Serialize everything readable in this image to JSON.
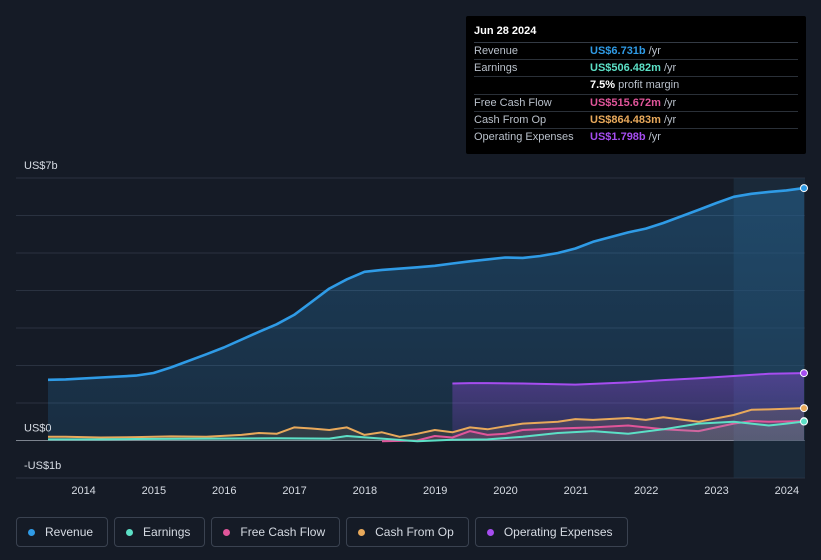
{
  "tooltip": {
    "date": "Jun 28 2024",
    "rows": [
      {
        "label": "Revenue",
        "value": "US$6.731b",
        "unit": "/yr",
        "color": "#2f9be6"
      },
      {
        "label": "Earnings",
        "value": "US$506.482m",
        "unit": "/yr",
        "color": "#5ce0c6"
      },
      {
        "label": "",
        "value": "7.5%",
        "unit": "profit margin",
        "color": "#ffffff"
      },
      {
        "label": "Free Cash Flow",
        "value": "US$515.672m",
        "unit": "/yr",
        "color": "#e0559a"
      },
      {
        "label": "Cash From Op",
        "value": "US$864.483m",
        "unit": "/yr",
        "color": "#e8a95b"
      },
      {
        "label": "Operating Expenses",
        "value": "US$1.798b",
        "unit": "/yr",
        "color": "#a64df0"
      }
    ]
  },
  "legend": [
    {
      "label": "Revenue",
      "color": "#2f9be6"
    },
    {
      "label": "Earnings",
      "color": "#5ce0c6"
    },
    {
      "label": "Free Cash Flow",
      "color": "#e0559a"
    },
    {
      "label": "Cash From Op",
      "color": "#e8a95b"
    },
    {
      "label": "Operating Expenses",
      "color": "#a64df0"
    }
  ],
  "chart_data": {
    "type": "area",
    "title": "",
    "xlabel": "",
    "ylabel": "",
    "ylim": [
      -1,
      7
    ],
    "xlim": [
      2013.75,
      2024.5
    ],
    "y_tick_labels": [
      {
        "value": 7,
        "label": "US$7b"
      },
      {
        "value": 0,
        "label": "US$0"
      },
      {
        "value": -1,
        "label": "-US$1b"
      }
    ],
    "x_tick_labels": [
      "2014",
      "2015",
      "2016",
      "2017",
      "2018",
      "2019",
      "2020",
      "2021",
      "2022",
      "2023",
      "2024"
    ],
    "x_ticks": [
      2014,
      2015,
      2016,
      2017,
      2018,
      2019,
      2020,
      2021,
      2022,
      2023,
      2024
    ],
    "highlight_start": 2023.5,
    "series": [
      {
        "name": "Revenue",
        "color": "#2f9be6",
        "x": [
          2013.75,
          2014.0,
          2014.5,
          2015.0,
          2015.25,
          2015.5,
          2016.0,
          2016.25,
          2016.75,
          2017.0,
          2017.25,
          2017.5,
          2017.75,
          2018.0,
          2018.25,
          2018.5,
          2019.0,
          2019.25,
          2019.5,
          2019.75,
          2020.0,
          2020.25,
          2020.5,
          2020.75,
          2021.0,
          2021.25,
          2021.5,
          2022.0,
          2022.25,
          2022.5,
          2023.0,
          2023.25,
          2023.5,
          2023.75,
          2024.0,
          2024.25,
          2024.5
        ],
        "values": [
          1.62,
          1.63,
          1.68,
          1.73,
          1.8,
          1.95,
          2.3,
          2.48,
          2.9,
          3.1,
          3.35,
          3.7,
          4.05,
          4.3,
          4.5,
          4.55,
          4.62,
          4.66,
          4.72,
          4.78,
          4.83,
          4.88,
          4.87,
          4.92,
          5.0,
          5.12,
          5.3,
          5.55,
          5.65,
          5.8,
          6.15,
          6.33,
          6.5,
          6.58,
          6.63,
          6.67,
          6.731
        ]
      },
      {
        "name": "Operating Expenses",
        "color": "#a64df0",
        "x": [
          2019.5,
          2019.75,
          2020.0,
          2020.5,
          2021.0,
          2021.25,
          2021.5,
          2022.0,
          2022.5,
          2023.0,
          2023.5,
          2024.0,
          2024.5
        ],
        "values": [
          1.52,
          1.53,
          1.53,
          1.52,
          1.5,
          1.49,
          1.51,
          1.55,
          1.61,
          1.66,
          1.72,
          1.78,
          1.798
        ]
      },
      {
        "name": "Cash From Op",
        "color": "#e8a95b",
        "x": [
          2013.75,
          2014.0,
          2014.5,
          2015.0,
          2015.5,
          2016.0,
          2016.5,
          2016.75,
          2017.0,
          2017.25,
          2017.5,
          2017.75,
          2018.0,
          2018.25,
          2018.5,
          2018.75,
          2019.0,
          2019.25,
          2019.5,
          2019.75,
          2020.0,
          2020.25,
          2020.5,
          2021.0,
          2021.25,
          2021.5,
          2022.0,
          2022.25,
          2022.5,
          2023.0,
          2023.5,
          2023.75,
          2024.0,
          2024.5
        ],
        "values": [
          0.1,
          0.1,
          0.08,
          0.09,
          0.11,
          0.1,
          0.15,
          0.2,
          0.18,
          0.35,
          0.32,
          0.28,
          0.35,
          0.15,
          0.22,
          0.1,
          0.18,
          0.28,
          0.22,
          0.35,
          0.3,
          0.38,
          0.45,
          0.5,
          0.57,
          0.55,
          0.6,
          0.55,
          0.62,
          0.5,
          0.68,
          0.82,
          0.83,
          0.864
        ]
      },
      {
        "name": "Free Cash Flow",
        "color": "#e0559a",
        "x": [
          2018.5,
          2019.0,
          2019.25,
          2019.5,
          2019.75,
          2020.0,
          2020.25,
          2020.5,
          2021.0,
          2021.5,
          2022.0,
          2022.25,
          2022.5,
          2023.0,
          2023.5,
          2023.75,
          2024.0,
          2024.5
        ],
        "values": [
          -0.02,
          0.0,
          0.12,
          0.08,
          0.25,
          0.15,
          0.18,
          0.28,
          0.32,
          0.35,
          0.4,
          0.35,
          0.3,
          0.25,
          0.45,
          0.52,
          0.5,
          0.516
        ]
      },
      {
        "name": "Earnings",
        "color": "#5ce0c6",
        "x": [
          2013.75,
          2014.5,
          2015.0,
          2016.0,
          2017.0,
          2017.75,
          2018.0,
          2018.5,
          2019.0,
          2019.5,
          2020.0,
          2020.5,
          2021.0,
          2021.5,
          2022.0,
          2022.5,
          2023.0,
          2023.5,
          2024.0,
          2024.25,
          2024.5
        ],
        "values": [
          0.03,
          0.03,
          0.04,
          0.05,
          0.06,
          0.05,
          0.12,
          0.05,
          -0.02,
          0.02,
          0.03,
          0.1,
          0.2,
          0.25,
          0.18,
          0.3,
          0.45,
          0.5,
          0.4,
          0.45,
          0.506
        ]
      }
    ]
  }
}
